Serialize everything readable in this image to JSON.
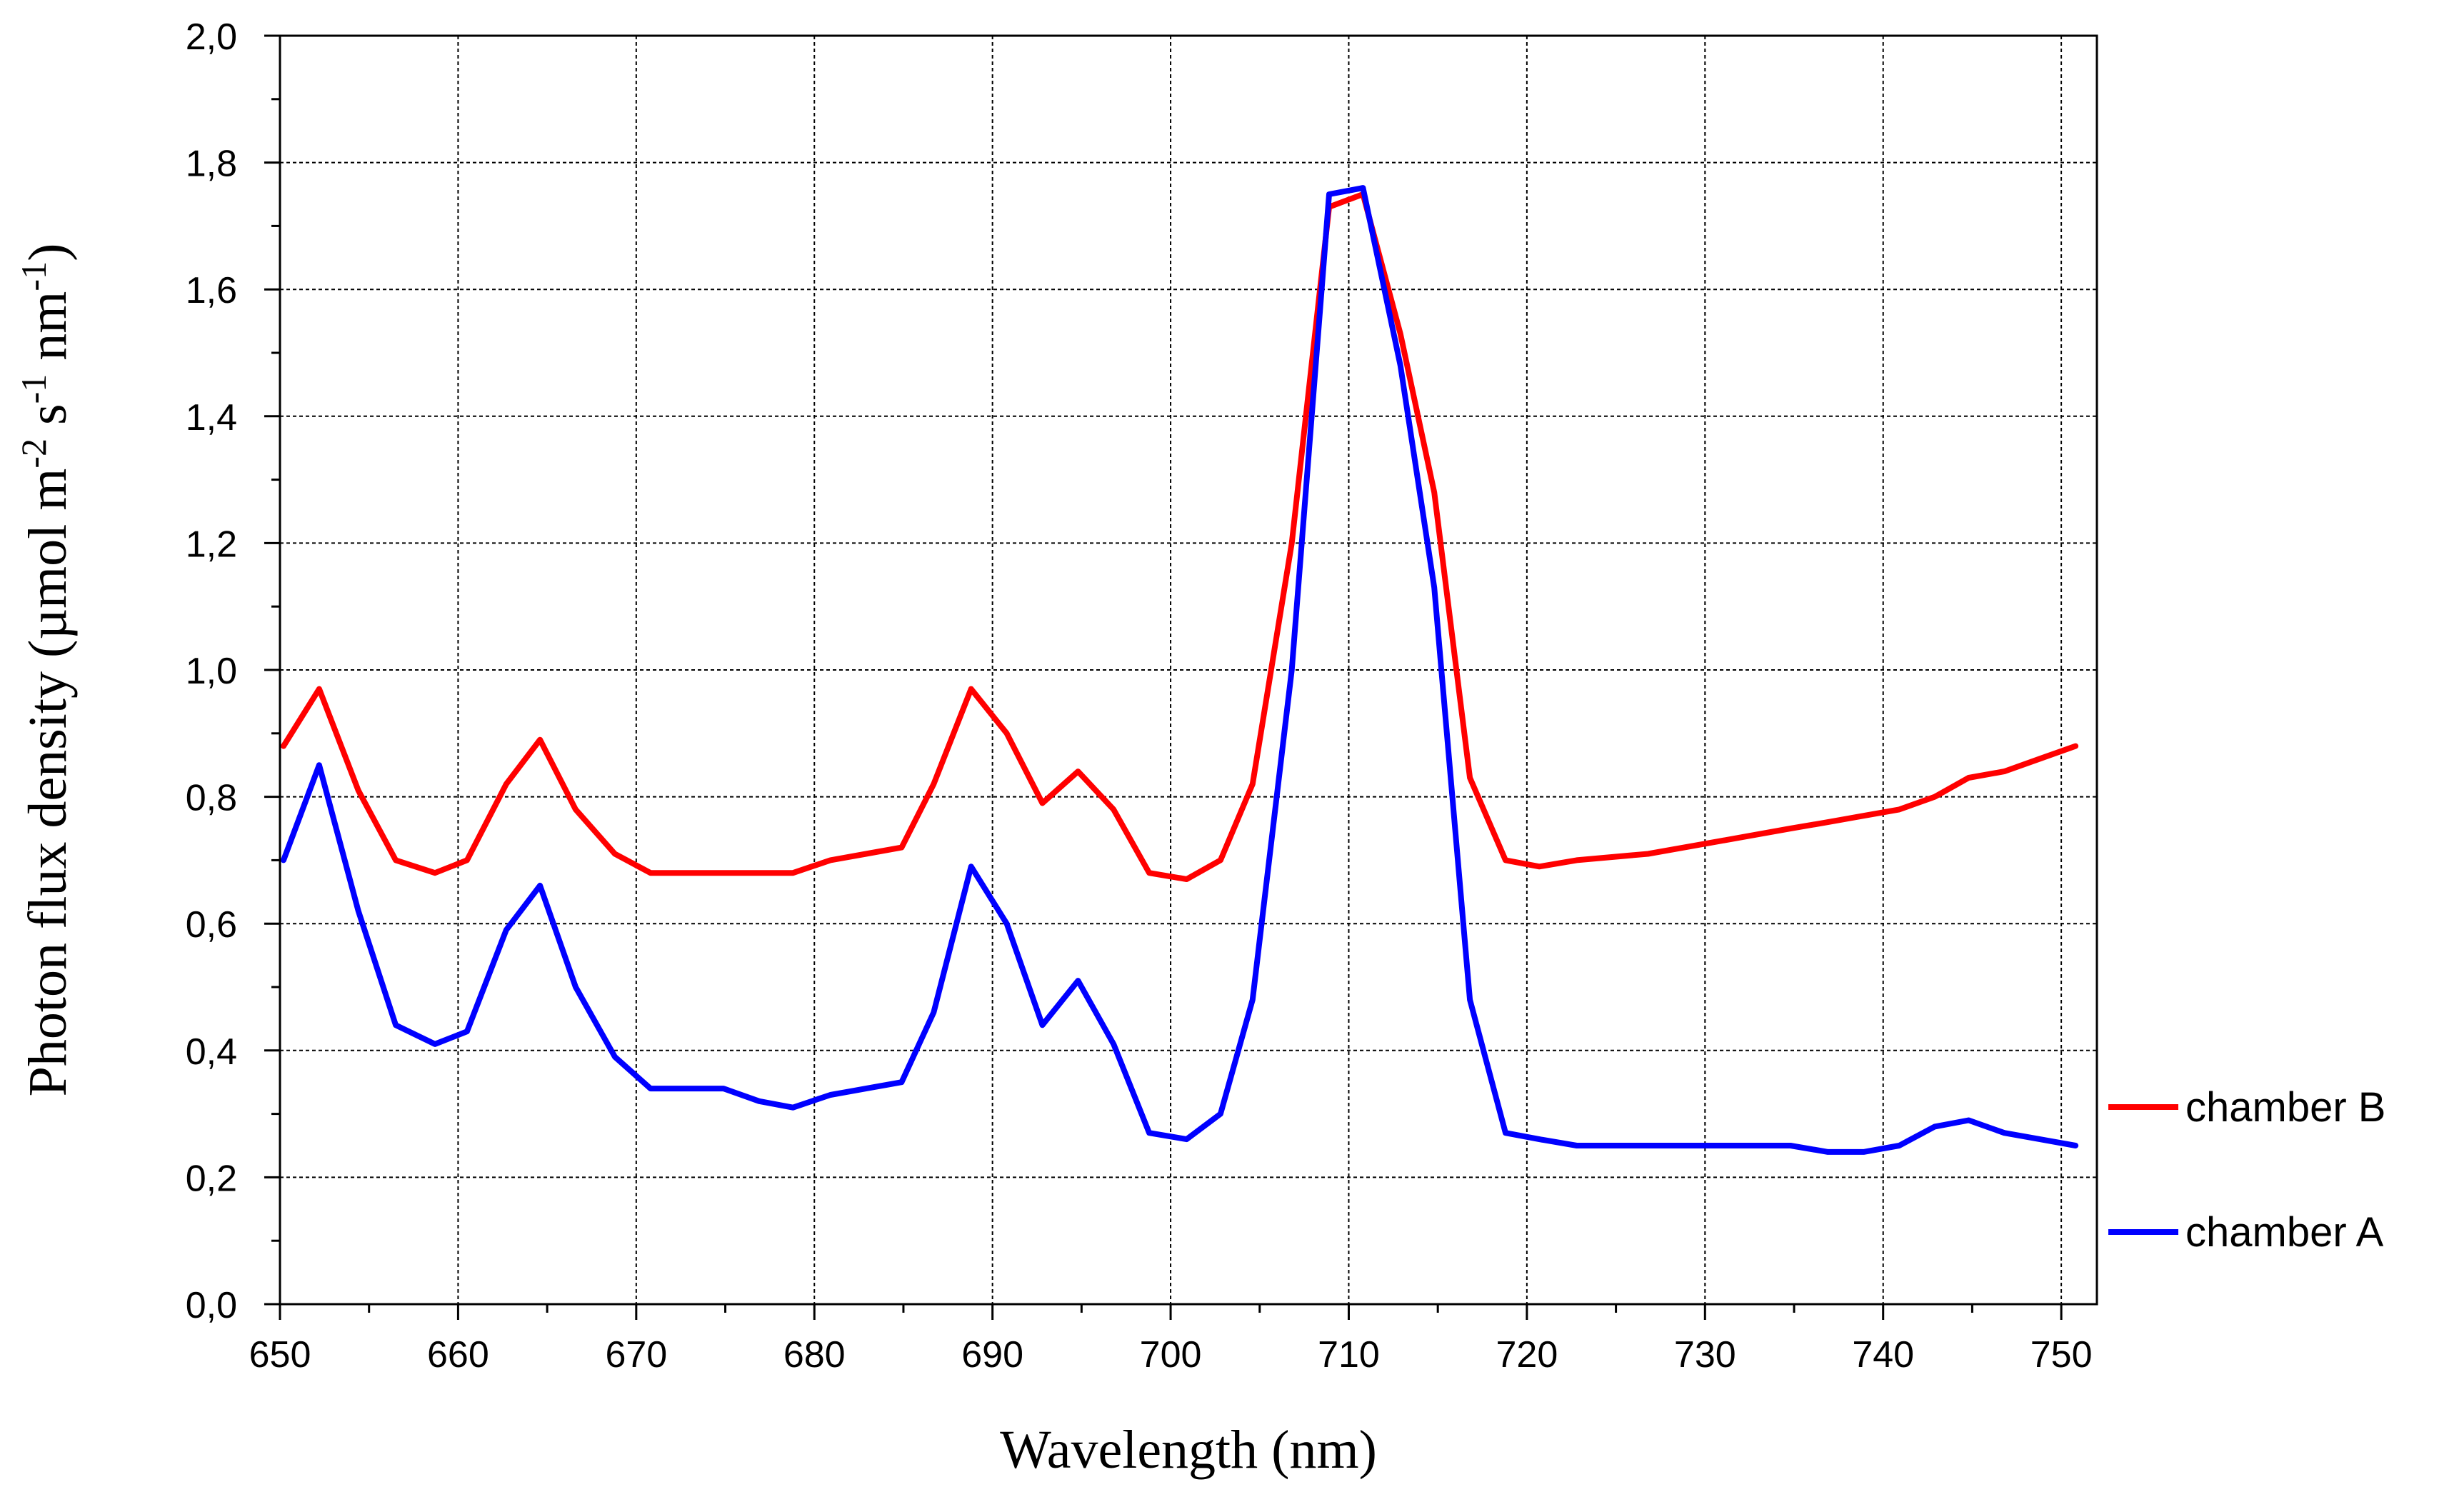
{
  "chart_data": {
    "type": "line",
    "title": "",
    "xlabel": "Wavelength (nm)",
    "ylabel": {
      "parts": [
        {
          "text": "Photon flux density (µmol m",
          "sup": false
        },
        {
          "text": "-2",
          "sup": true
        },
        {
          "text": " s",
          "sup": false
        },
        {
          "text": "-1",
          "sup": true
        },
        {
          "text": " nm",
          "sup": false
        },
        {
          "text": "-1",
          "sup": true
        },
        {
          "text": ")",
          "sup": false
        }
      ]
    },
    "xlim": [
      650,
      752
    ],
    "ylim": [
      0,
      2.0
    ],
    "xticks": [
      650,
      660,
      670,
      680,
      690,
      700,
      710,
      720,
      730,
      740,
      750
    ],
    "yticks": [
      0.0,
      0.2,
      0.4,
      0.6,
      0.8,
      1.0,
      1.2,
      1.4,
      1.6,
      1.8,
      2.0
    ],
    "xtick_labels": [
      "650",
      "660",
      "670",
      "680",
      "690",
      "700",
      "710",
      "720",
      "730",
      "740",
      "750"
    ],
    "ytick_labels": [
      "0,0",
      "0,2",
      "0,4",
      "0,6",
      "0,8",
      "1,0",
      "1,2",
      "1,4",
      "1,6",
      "1,8",
      "2,0"
    ],
    "grid": true,
    "legend_position": "right",
    "series": [
      {
        "name": "chamber B",
        "color": "#ff0000",
        "x": [
          650.2,
          652.2,
          654.4,
          656.5,
          658.7,
          660.5,
          662.7,
          664.6,
          666.6,
          668.8,
          670.8,
          672.8,
          674.9,
          676.9,
          678.8,
          680.9,
          682.9,
          684.9,
          686.7,
          688.8,
          690.8,
          692.8,
          694.8,
          696.8,
          698.8,
          700.9,
          702.8,
          704.6,
          706.8,
          708.9,
          710.8,
          712.9,
          714.8,
          716.8,
          718.8,
          720.7,
          722.8,
          726.8,
          730.8,
          734.8,
          736.9,
          738.9,
          740.9,
          742.9,
          744.8,
          746.8,
          748.8,
          750.8
        ],
        "values": [
          0.88,
          0.97,
          0.81,
          0.7,
          0.68,
          0.7,
          0.82,
          0.89,
          0.78,
          0.71,
          0.68,
          0.68,
          0.68,
          0.68,
          0.68,
          0.7,
          0.71,
          0.72,
          0.82,
          0.97,
          0.9,
          0.79,
          0.84,
          0.78,
          0.68,
          0.67,
          0.7,
          0.82,
          1.2,
          1.73,
          1.75,
          1.53,
          1.28,
          0.83,
          0.7,
          0.69,
          0.7,
          0.71,
          0.73,
          0.75,
          0.76,
          0.77,
          0.78,
          0.8,
          0.83,
          0.84,
          0.86,
          0.88
        ]
      },
      {
        "name": "chamber A",
        "color": "#0000ff",
        "x": [
          650.2,
          652.2,
          654.4,
          656.5,
          658.7,
          660.5,
          662.7,
          664.6,
          666.6,
          668.8,
          670.8,
          672.8,
          674.9,
          676.9,
          678.8,
          680.9,
          682.9,
          684.9,
          686.7,
          688.8,
          690.8,
          692.8,
          694.8,
          696.8,
          698.8,
          700.9,
          702.8,
          704.6,
          706.8,
          708.9,
          710.8,
          712.9,
          714.8,
          716.8,
          718.8,
          720.7,
          722.8,
          726.8,
          730.8,
          734.8,
          736.9,
          738.9,
          740.9,
          742.9,
          744.8,
          746.8,
          748.8,
          750.8
        ],
        "values": [
          0.7,
          0.85,
          0.62,
          0.44,
          0.41,
          0.43,
          0.59,
          0.66,
          0.5,
          0.39,
          0.34,
          0.34,
          0.34,
          0.32,
          0.31,
          0.33,
          0.34,
          0.35,
          0.46,
          0.69,
          0.6,
          0.44,
          0.51,
          0.41,
          0.27,
          0.26,
          0.3,
          0.48,
          1.0,
          1.75,
          1.76,
          1.48,
          1.13,
          0.48,
          0.27,
          0.26,
          0.25,
          0.25,
          0.25,
          0.25,
          0.24,
          0.24,
          0.25,
          0.28,
          0.29,
          0.27,
          0.26,
          0.25
        ]
      }
    ]
  }
}
